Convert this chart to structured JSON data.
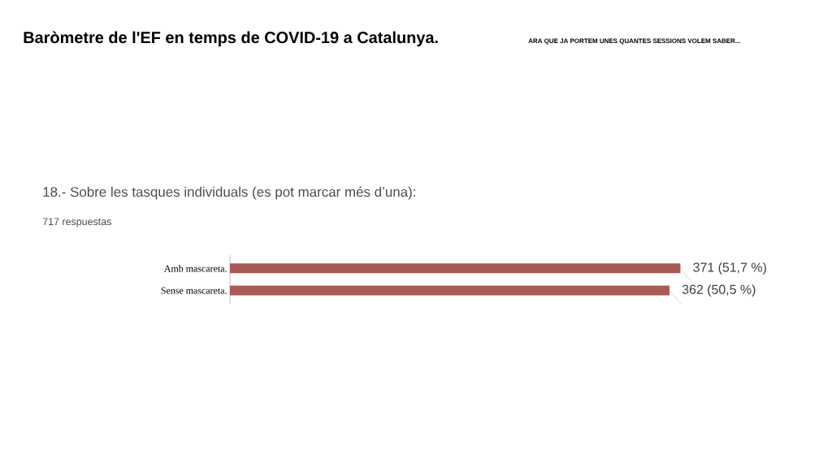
{
  "chart_data": {
    "type": "bar",
    "orientation": "horizontal",
    "title": "Baròmetre de l'EF en temps de COVID-19 a Catalunya.",
    "subtitle": "ARA QUE JA PORTEM UNES QUANTES SESSIONS VOLEM SABER...",
    "annotations": [
      "18.- Sobre les tasques individuals (es pot marcar més d’una):",
      "717 respuestas"
    ],
    "categories": [
      "Amb mascareta.",
      "Sense mascareta."
    ],
    "values": [
      371,
      362
    ],
    "value_labels": [
      "371 (51,7 %)",
      "362 (50,5 %)"
    ],
    "color": "#a85a55",
    "tick_labels": "y"
  }
}
